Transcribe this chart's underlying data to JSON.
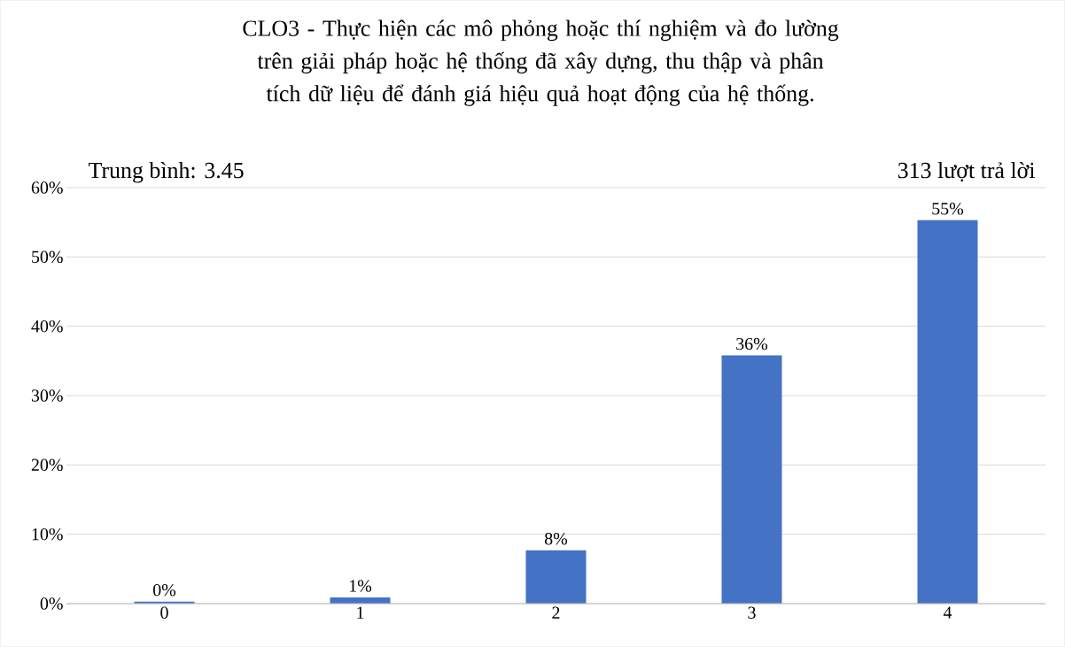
{
  "chart_data": {
    "type": "bar",
    "title": "CLO3 - Thực hiện các mô phỏng hoặc thí nghiệm và đo lường trên giải pháp hoặc hệ thống đã xây dựng, thu thập và phân tích dữ liệu để đánh giá hiệu quả hoạt động của hệ thống.",
    "annotations": [
      "Trung bình: 3.45",
      "313 lượt trả lời"
    ],
    "categories": [
      "0",
      "1",
      "2",
      "3",
      "4"
    ],
    "values": [
      0.3,
      0.9,
      7.7,
      35.8,
      55.3
    ],
    "value_labels": [
      "0%",
      "1%",
      "8%",
      "36%",
      "55%"
    ],
    "color": "#4472c4",
    "ylim": [
      0,
      60
    ],
    "yticks": [
      {
        "value": 0,
        "label": "0%"
      },
      {
        "value": 10,
        "label": "10%"
      },
      {
        "value": 20,
        "label": "20%"
      },
      {
        "value": 30,
        "label": "30%"
      },
      {
        "value": 40,
        "label": "40%"
      },
      {
        "value": 50,
        "label": "50%"
      },
      {
        "value": 60,
        "label": "60%"
      }
    ],
    "grid": "y"
  }
}
